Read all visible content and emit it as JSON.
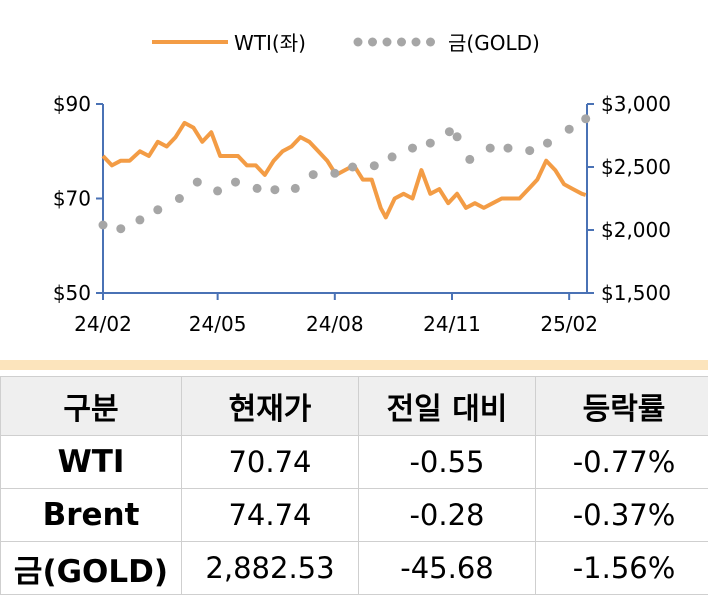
{
  "chart_data": {
    "type": "line",
    "legend_position": "top",
    "grid": false,
    "x_ticks": [
      "24/02",
      "24/05",
      "24/08",
      "24/11",
      "25/02"
    ],
    "y_left": {
      "ticks": [
        "$90",
        "$70",
        "$50"
      ],
      "ylim": [
        50,
        90
      ]
    },
    "y_right": {
      "ticks": [
        "$3,000",
        "$2,500",
        "$2,000",
        "$1,500"
      ],
      "ylim": [
        1500,
        3000
      ]
    },
    "series": [
      {
        "name": "WTI(좌)",
        "axis": "left",
        "color": "#f39c45",
        "style": "solid",
        "points": [
          [
            "2024-02-01",
            79
          ],
          [
            "2024-02-08",
            77
          ],
          [
            "2024-02-15",
            78
          ],
          [
            "2024-02-22",
            78
          ],
          [
            "2024-03-01",
            80
          ],
          [
            "2024-03-08",
            79
          ],
          [
            "2024-03-15",
            82
          ],
          [
            "2024-03-22",
            81
          ],
          [
            "2024-03-29",
            83
          ],
          [
            "2024-04-05",
            86
          ],
          [
            "2024-04-12",
            85
          ],
          [
            "2024-04-19",
            82
          ],
          [
            "2024-04-26",
            84
          ],
          [
            "2024-05-03",
            79
          ],
          [
            "2024-05-10",
            79
          ],
          [
            "2024-05-17",
            79
          ],
          [
            "2024-05-24",
            77
          ],
          [
            "2024-05-31",
            77
          ],
          [
            "2024-06-07",
            75
          ],
          [
            "2024-06-14",
            78
          ],
          [
            "2024-06-21",
            80
          ],
          [
            "2024-06-28",
            81
          ],
          [
            "2024-07-05",
            83
          ],
          [
            "2024-07-12",
            82
          ],
          [
            "2024-07-19",
            80
          ],
          [
            "2024-07-26",
            78
          ],
          [
            "2024-08-02",
            75
          ],
          [
            "2024-08-09",
            76
          ],
          [
            "2024-08-16",
            77
          ],
          [
            "2024-08-23",
            74
          ],
          [
            "2024-08-30",
            74
          ],
          [
            "2024-09-06",
            68
          ],
          [
            "2024-09-10",
            66
          ],
          [
            "2024-09-17",
            70
          ],
          [
            "2024-09-24",
            71
          ],
          [
            "2024-10-01",
            70
          ],
          [
            "2024-10-08",
            76
          ],
          [
            "2024-10-15",
            71
          ],
          [
            "2024-10-22",
            72
          ],
          [
            "2024-10-29",
            69
          ],
          [
            "2024-11-05",
            71
          ],
          [
            "2024-11-12",
            68
          ],
          [
            "2024-11-19",
            69
          ],
          [
            "2024-11-26",
            68
          ],
          [
            "2024-12-03",
            69
          ],
          [
            "2024-12-10",
            70
          ],
          [
            "2024-12-17",
            70
          ],
          [
            "2024-12-24",
            70
          ],
          [
            "2024-12-31",
            72
          ],
          [
            "2025-01-07",
            74
          ],
          [
            "2025-01-14",
            78
          ],
          [
            "2025-01-21",
            76
          ],
          [
            "2025-01-28",
            73
          ],
          [
            "2025-02-04",
            72
          ],
          [
            "2025-02-11",
            71
          ],
          [
            "2025-02-14",
            70.74
          ]
        ]
      },
      {
        "name": "금(GOLD)",
        "axis": "right",
        "color": "#a6a6a6",
        "style": "dotted",
        "points": [
          [
            "2024-02-01",
            2040
          ],
          [
            "2024-02-15",
            2010
          ],
          [
            "2024-03-01",
            2080
          ],
          [
            "2024-03-15",
            2160
          ],
          [
            "2024-04-01",
            2250
          ],
          [
            "2024-04-15",
            2380
          ],
          [
            "2024-05-01",
            2310
          ],
          [
            "2024-05-15",
            2380
          ],
          [
            "2024-06-01",
            2330
          ],
          [
            "2024-06-15",
            2320
          ],
          [
            "2024-07-01",
            2330
          ],
          [
            "2024-07-15",
            2440
          ],
          [
            "2024-08-01",
            2450
          ],
          [
            "2024-08-15",
            2500
          ],
          [
            "2024-09-01",
            2510
          ],
          [
            "2024-09-15",
            2580
          ],
          [
            "2024-10-01",
            2650
          ],
          [
            "2024-10-15",
            2690
          ],
          [
            "2024-10-30",
            2780
          ],
          [
            "2024-11-05",
            2740
          ],
          [
            "2024-11-15",
            2560
          ],
          [
            "2024-12-01",
            2650
          ],
          [
            "2024-12-15",
            2650
          ],
          [
            "2025-01-01",
            2630
          ],
          [
            "2025-01-15",
            2690
          ],
          [
            "2025-02-01",
            2800
          ],
          [
            "2025-02-14",
            2882.53
          ]
        ]
      }
    ]
  },
  "table": {
    "headers": [
      "구분",
      "현재가",
      "전일 대비",
      "등락률"
    ],
    "rows": [
      {
        "label": "WTI",
        "price": "70.74",
        "change": "-0.55",
        "rate": "-0.77%"
      },
      {
        "label": "Brent",
        "price": "74.74",
        "change": "-0.28",
        "rate": "-0.37%"
      },
      {
        "label": "금(GOLD)",
        "price": "2,882.53",
        "change": "-45.68",
        "rate": "-1.56%"
      }
    ]
  },
  "colors": {
    "axis": "#4a72b5",
    "table_header_bg": "#efefef",
    "divider": "#fce4bc"
  }
}
